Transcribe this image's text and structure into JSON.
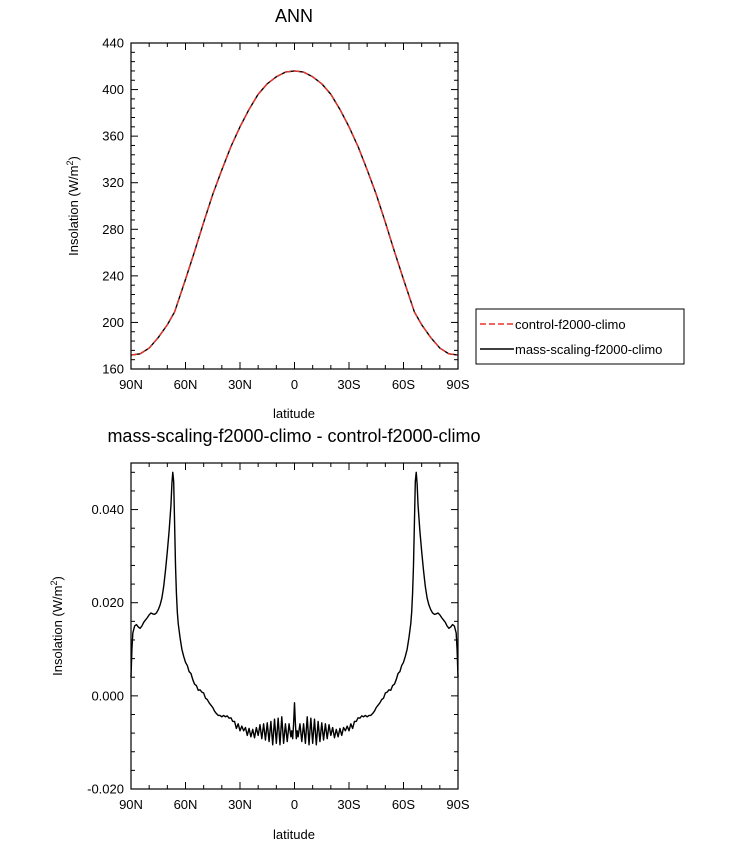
{
  "chart_data": [
    {
      "type": "line",
      "title": "ANN",
      "xlabel": "latitude",
      "ylabel": "Insolation (W/m",
      "ylabel_sup": "2",
      "ylabel_close": ")",
      "xlim": [
        -90,
        90
      ],
      "ylim": [
        160,
        440
      ],
      "x_ticks": [
        -90,
        -60,
        -30,
        0,
        30,
        60,
        90
      ],
      "x_tick_labels": [
        "90N",
        "60N",
        "30N",
        "0",
        "30S",
        "60S",
        "90S"
      ],
      "y_ticks": [
        160,
        200,
        240,
        280,
        320,
        360,
        400,
        440
      ],
      "y_tick_labels": [
        "160",
        "200",
        "240",
        "280",
        "320",
        "360",
        "400",
        "440"
      ],
      "legend": [
        "control-f2000-climo",
        "mass-scaling-f2000-climo"
      ],
      "series": [
        {
          "name": "control-f2000-climo",
          "color": "#e8332a",
          "style": "dashed",
          "x": [
            -90,
            -85,
            -80,
            -75,
            -70,
            -66,
            -60,
            -55,
            -50,
            -45,
            -40,
            -35,
            -30,
            -25,
            -20,
            -15,
            -10,
            -5,
            0,
            5,
            10,
            15,
            20,
            25,
            30,
            35,
            40,
            45,
            50,
            55,
            60,
            66,
            70,
            75,
            80,
            85,
            90
          ],
          "y": [
            172,
            173,
            178,
            187,
            198,
            209,
            237,
            261,
            286,
            310,
            331,
            351,
            368,
            383,
            396,
            405,
            411,
            415,
            416,
            415,
            411,
            405,
            396,
            383,
            368,
            351,
            331,
            310,
            286,
            261,
            237,
            209,
            198,
            187,
            178,
            173,
            172
          ]
        },
        {
          "name": "mass-scaling-f2000-climo",
          "color": "#000000",
          "style": "solid",
          "x": [
            -90,
            -85,
            -80,
            -75,
            -70,
            -66,
            -60,
            -55,
            -50,
            -45,
            -40,
            -35,
            -30,
            -25,
            -20,
            -15,
            -10,
            -5,
            0,
            5,
            10,
            15,
            20,
            25,
            30,
            35,
            40,
            45,
            50,
            55,
            60,
            66,
            70,
            75,
            80,
            85,
            90
          ],
          "y": [
            172,
            173,
            178,
            187,
            198,
            209,
            237,
            261,
            286,
            310,
            331,
            351,
            368,
            383,
            396,
            405,
            411,
            415,
            416,
            415,
            411,
            405,
            396,
            383,
            368,
            351,
            331,
            310,
            286,
            261,
            237,
            209,
            198,
            187,
            178,
            173,
            172
          ]
        }
      ]
    },
    {
      "type": "line",
      "title": "mass-scaling-f2000-climo - control-f2000-climo",
      "xlabel": "latitude",
      "ylabel": "Insolation (W/m",
      "ylabel_sup": "2",
      "ylabel_close": ")",
      "xlim": [
        -90,
        90
      ],
      "ylim": [
        -0.02,
        0.05
      ],
      "x_ticks": [
        -90,
        -60,
        -30,
        0,
        30,
        60,
        90
      ],
      "x_tick_labels": [
        "90N",
        "60N",
        "30N",
        "0",
        "30S",
        "60S",
        "90S"
      ],
      "y_ticks": [
        -0.02,
        0.0,
        0.02,
        0.04
      ],
      "y_tick_labels": [
        "-0.020",
        "0.000",
        "0.020",
        "0.040"
      ],
      "series": [
        {
          "name": "mass-scaling-f2000-climo - control-f2000-climo",
          "color": "#000000",
          "style": "solid",
          "x": [
            -90,
            -89.5,
            -89,
            -88,
            -87,
            -86,
            -85,
            -84,
            -83,
            -82,
            -81,
            -80,
            -79,
            -78,
            -77,
            -76,
            -75,
            -74,
            -73,
            -72,
            -71,
            -70,
            -69,
            -68,
            -67.5,
            -67,
            -66.5,
            -66,
            -65.5,
            -65,
            -64.5,
            -64,
            -63,
            -62,
            -61,
            -60,
            -59,
            -58,
            -57,
            -56,
            -55,
            -54,
            -53,
            -52,
            -51,
            -50,
            -49,
            -48,
            -47,
            -46,
            -45,
            -44,
            -43,
            -42,
            -41,
            -40,
            -39,
            -38,
            -37,
            -36,
            -35,
            -34,
            -33,
            -32,
            -31,
            -30,
            -29,
            -28,
            -27,
            -26,
            -25,
            -24,
            -23,
            -22,
            -21,
            -20,
            -19,
            -18,
            -17,
            -16,
            -15,
            -14,
            -13,
            -12,
            -11,
            -10,
            -9,
            -8,
            -7,
            -6,
            -5,
            -4,
            -3,
            -2,
            -1.5,
            -1,
            -0.5,
            0,
            0.5,
            1,
            1.5,
            2,
            3,
            4,
            5,
            6,
            7,
            8,
            9,
            10,
            11,
            12,
            13,
            14,
            15,
            16,
            17,
            18,
            19,
            20,
            21,
            22,
            23,
            24,
            25,
            26,
            27,
            28,
            29,
            30,
            31,
            32,
            33,
            34,
            35,
            36,
            37,
            38,
            39,
            40,
            41,
            42,
            43,
            44,
            45,
            46,
            47,
            48,
            49,
            50,
            51,
            52,
            53,
            54,
            55,
            56,
            57,
            58,
            59,
            60,
            61,
            62,
            63,
            64,
            64.5,
            65,
            65.5,
            66,
            66.5,
            67,
            67.5,
            68,
            69,
            70,
            71,
            72,
            73,
            74,
            75,
            76,
            77,
            78,
            79,
            80,
            81,
            82,
            83,
            84,
            85,
            86,
            87,
            88,
            89,
            89.5,
            90
          ],
          "y": [
            0.004,
            0.01,
            0.0135,
            0.015,
            0.0153,
            0.0148,
            0.0145,
            0.015,
            0.0158,
            0.0163,
            0.0168,
            0.0174,
            0.0178,
            0.0176,
            0.0175,
            0.0178,
            0.0185,
            0.0195,
            0.021,
            0.0235,
            0.027,
            0.031,
            0.0355,
            0.041,
            0.0455,
            0.048,
            0.046,
            0.037,
            0.028,
            0.022,
            0.018,
            0.0155,
            0.0125,
            0.01,
            0.0085,
            0.0072,
            0.0065,
            0.0052,
            0.0048,
            0.0035,
            0.0025,
            0.0022,
            0.0012,
            0.0013,
            0.0008,
            0.0006,
            -0.0005,
            -0.0008,
            -0.0015,
            -0.002,
            -0.0025,
            -0.0033,
            -0.0038,
            -0.0042,
            -0.0042,
            -0.0045,
            -0.0042,
            -0.0045,
            -0.0043,
            -0.0048,
            -0.0047,
            -0.0055,
            -0.0055,
            -0.007,
            -0.006,
            -0.0075,
            -0.0065,
            -0.0075,
            -0.0068,
            -0.0085,
            -0.007,
            -0.0088,
            -0.0072,
            -0.009,
            -0.0068,
            -0.0085,
            -0.0062,
            -0.0092,
            -0.006,
            -0.0095,
            -0.0058,
            -0.0098,
            -0.0055,
            -0.0105,
            -0.005,
            -0.0102,
            -0.0048,
            -0.0105,
            -0.0045,
            -0.0102,
            -0.006,
            -0.0098,
            -0.006,
            -0.0088,
            -0.0075,
            -0.0092,
            -0.006,
            -0.0015,
            -0.006,
            -0.0092,
            -0.0075,
            -0.0088,
            -0.006,
            -0.0098,
            -0.006,
            -0.0102,
            -0.0045,
            -0.0105,
            -0.0048,
            -0.0102,
            -0.005,
            -0.0105,
            -0.0055,
            -0.0098,
            -0.0058,
            -0.0095,
            -0.006,
            -0.0092,
            -0.0062,
            -0.0085,
            -0.0068,
            -0.009,
            -0.0072,
            -0.0088,
            -0.007,
            -0.0085,
            -0.0068,
            -0.0075,
            -0.0065,
            -0.0075,
            -0.006,
            -0.007,
            -0.0055,
            -0.0055,
            -0.0047,
            -0.0048,
            -0.0043,
            -0.0045,
            -0.0042,
            -0.0045,
            -0.0042,
            -0.0042,
            -0.0038,
            -0.0033,
            -0.0025,
            -0.002,
            -0.0015,
            -0.0008,
            -0.0005,
            0.0006,
            0.0008,
            0.0013,
            0.0012,
            0.0022,
            0.0025,
            0.0035,
            0.0048,
            0.0052,
            0.0065,
            0.0072,
            0.0085,
            0.01,
            0.0125,
            0.0155,
            0.018,
            0.022,
            0.028,
            0.037,
            0.046,
            0.048,
            0.0455,
            0.041,
            0.0355,
            0.031,
            0.027,
            0.0235,
            0.021,
            0.0195,
            0.0185,
            0.0178,
            0.0175,
            0.0176,
            0.0178,
            0.0174,
            0.0168,
            0.0163,
            0.0158,
            0.015,
            0.0145,
            0.0148,
            0.0153,
            0.015,
            0.0135,
            0.01,
            0.004
          ]
        }
      ]
    }
  ]
}
